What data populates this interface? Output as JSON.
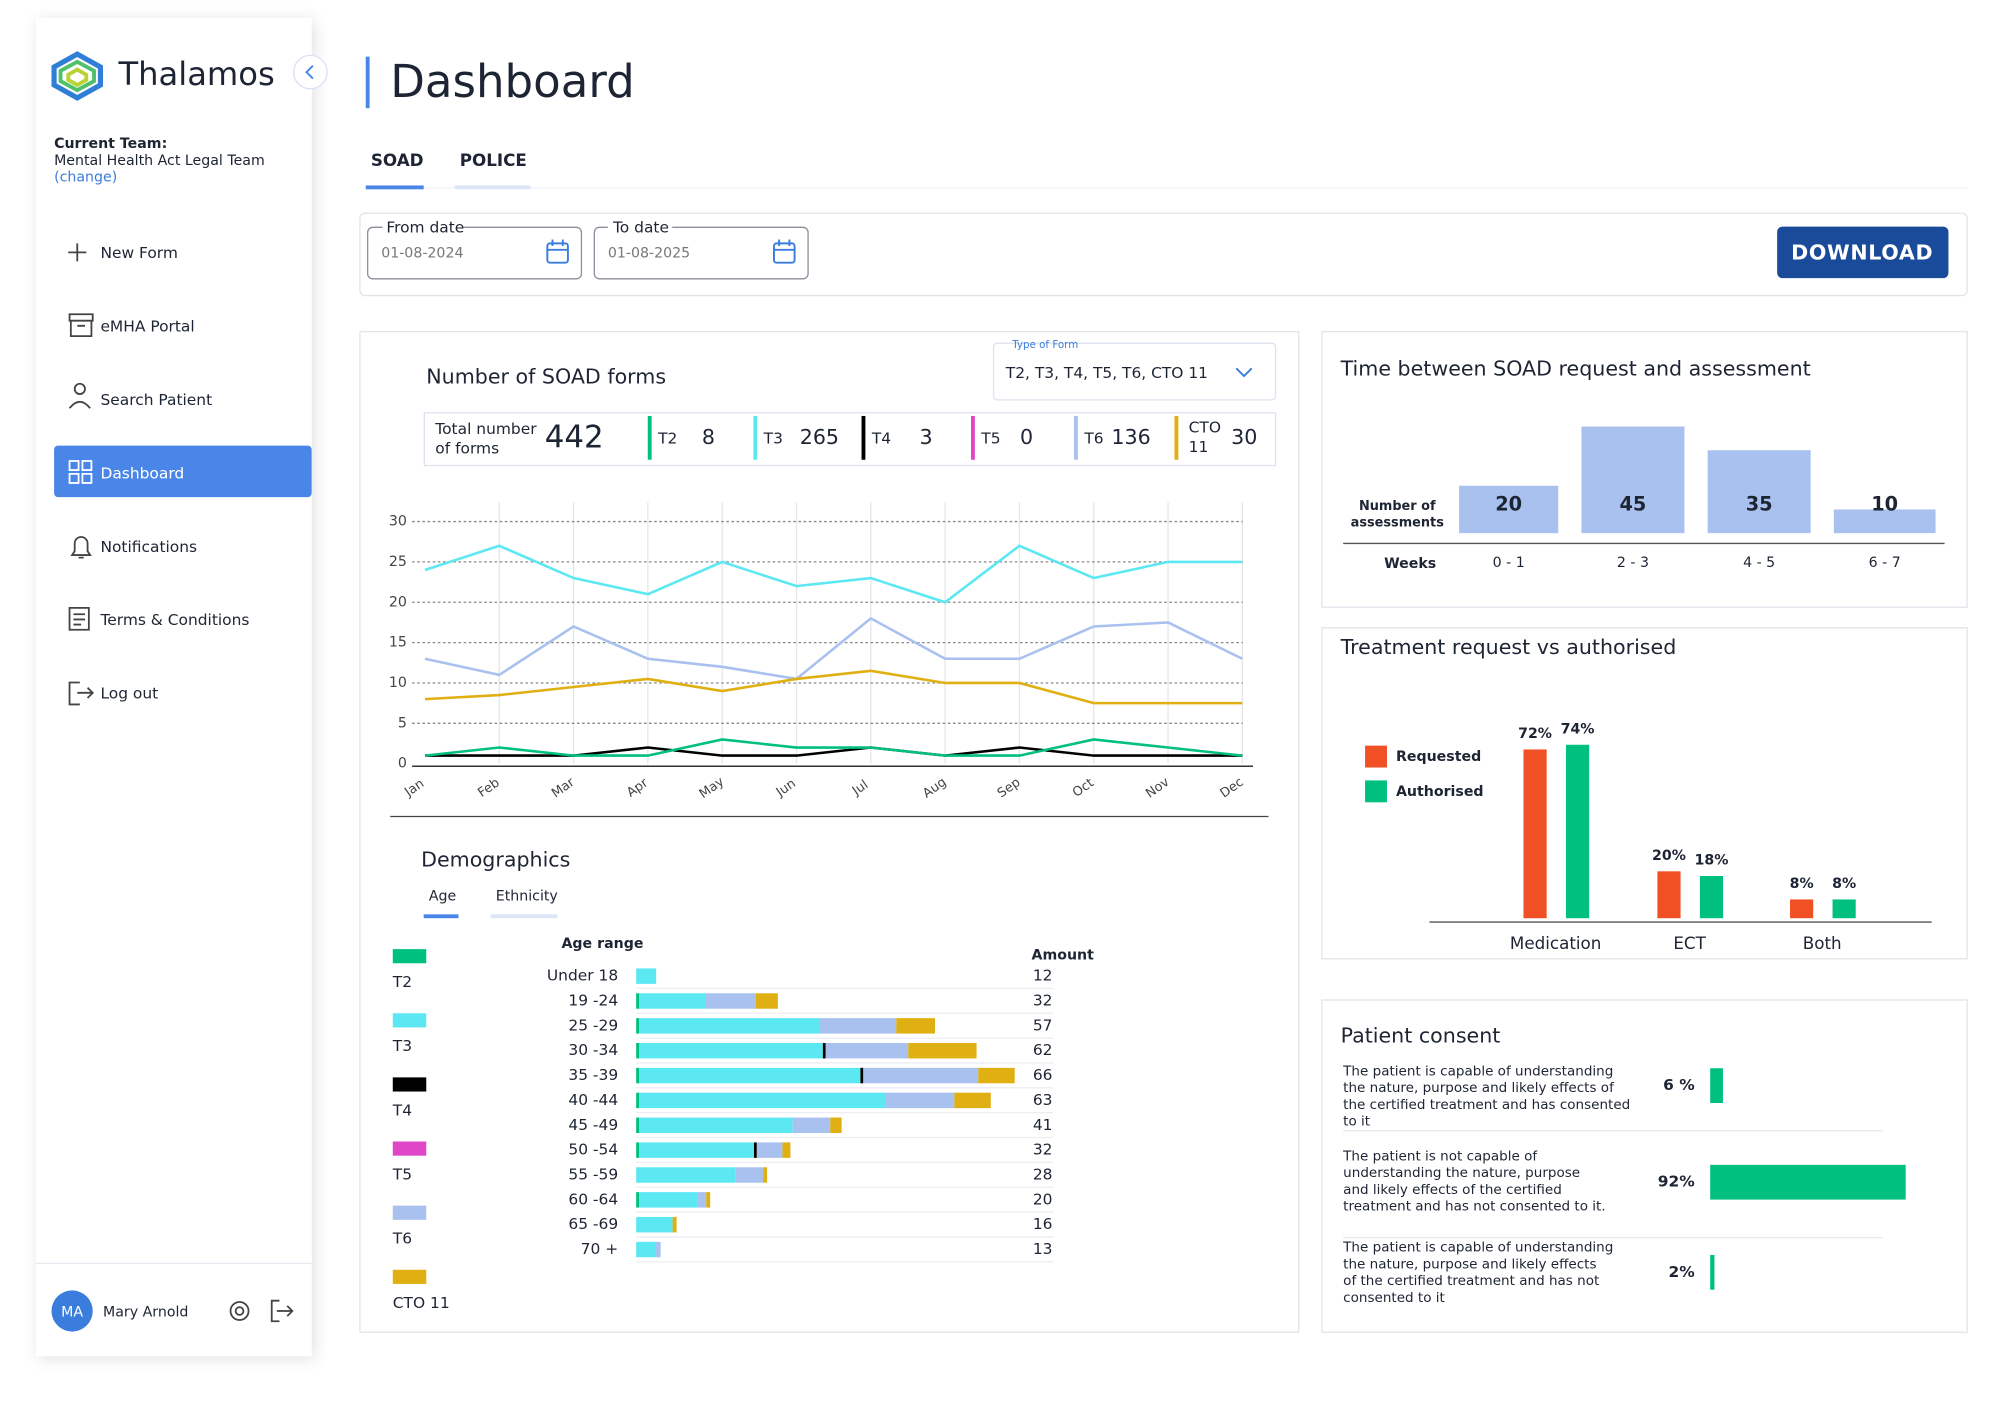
{
  "sidebar": {
    "brand": "Thalamos",
    "team_label": "Current Team:",
    "team": "Mental Health Act Legal Team",
    "change": "(change)",
    "nav": [
      "New Form",
      "eMHA Portal",
      "Search Patient",
      "Dashboard",
      "Notifications",
      "Terms & Conditions",
      "Log out"
    ],
    "user": {
      "initials": "MA",
      "name": "Mary Arnold"
    }
  },
  "header": {
    "title": "Dashboard",
    "tabs": [
      "SOAD",
      "POLICE"
    ]
  },
  "filters": {
    "from_label": "From date",
    "from": "01-08-2024",
    "to_label": "To date",
    "to": "01-08-2025",
    "download": "DOWNLOAD"
  },
  "soad": {
    "title": "Number of SOAD forms",
    "type_label": "Type of Form",
    "type_value": "T2, T3, T4, T5, T6, CTO 11",
    "total_label": "Total number of forms",
    "total": 442,
    "counts": [
      {
        "name": "T2",
        "value": 8,
        "color": "#00c07f"
      },
      {
        "name": "T3",
        "value": 265,
        "color": "#5ce8f2"
      },
      {
        "name": "T4",
        "value": 3,
        "color": "#000000"
      },
      {
        "name": "T5",
        "value": 0,
        "color": "#e046c8"
      },
      {
        "name": "T6",
        "value": 136,
        "color": "#a9c1ee"
      },
      {
        "name": "CTO 11",
        "value": 30,
        "color": "#e0b012"
      }
    ],
    "chart": {
      "type": "line",
      "categories": [
        "Jan",
        "Feb",
        "Mar",
        "Apr",
        "May",
        "Jun",
        "Jul",
        "Aug",
        "Sep",
        "Oct",
        "Nov",
        "Dec"
      ],
      "ylim": [
        0,
        30
      ],
      "yticks": [
        0,
        5,
        10,
        15,
        20,
        25,
        30
      ],
      "grid": true,
      "series": [
        {
          "color": "#5ce8f2",
          "values": [
            24,
            27,
            23,
            21,
            25,
            22,
            23,
            20,
            27,
            23,
            25,
            25
          ]
        },
        {
          "color": "#a9c1ee",
          "values": [
            13,
            11,
            17,
            13,
            12,
            10.5,
            18,
            13,
            13,
            17,
            17.5,
            13
          ]
        },
        {
          "color": "#e0b012",
          "values": [
            8,
            8.5,
            9.5,
            10.5,
            9,
            10.5,
            11.5,
            10,
            10,
            7.5,
            7.5,
            7.5
          ]
        },
        {
          "color": "#000000",
          "values": [
            1,
            1,
            1,
            2,
            1,
            1,
            2,
            1,
            2,
            1,
            1,
            1
          ]
        },
        {
          "color": "#00c07f",
          "values": [
            1,
            2,
            1,
            1,
            3,
            2,
            2,
            1,
            1,
            3,
            2,
            1
          ]
        }
      ]
    }
  },
  "demographics": {
    "title": "Demographics",
    "tabs": [
      "Age",
      "Ethnicity"
    ],
    "legend": [
      {
        "name": "T2",
        "color": "#00c07f"
      },
      {
        "name": "T3",
        "color": "#5ce8f2"
      },
      {
        "name": "T4",
        "color": "#000000"
      },
      {
        "name": "T5",
        "color": "#e046c8"
      },
      {
        "name": "T6",
        "color": "#a9c1ee"
      },
      {
        "name": "CTO 11",
        "color": "#e0b012"
      }
    ],
    "range_label": "Age range",
    "amount_label": "Amount",
    "rows": [
      {
        "label": "Under 18",
        "amount": 12,
        "segments": [
          0,
          3.5,
          0,
          0,
          0,
          0
        ]
      },
      {
        "label": "19 -24",
        "amount": 32,
        "segments": [
          0.5,
          11.6,
          0,
          0,
          8.9,
          3.9
        ]
      },
      {
        "label": "25 -29",
        "amount": 57,
        "segments": [
          0.5,
          31.8,
          0,
          0,
          13.4,
          6.8
        ]
      },
      {
        "label": "30 -34",
        "amount": 62,
        "segments": [
          0.5,
          32.3,
          0.5,
          0,
          14.5,
          12
        ]
      },
      {
        "label": "35 -39",
        "amount": 66,
        "segments": [
          0.5,
          38.9,
          0.5,
          0,
          20.2,
          6.4
        ]
      },
      {
        "label": "40 -44",
        "amount": 63,
        "segments": [
          0.5,
          43.4,
          0,
          0,
          12,
          6.4
        ]
      },
      {
        "label": "45 -49",
        "amount": 41,
        "segments": [
          0.5,
          27,
          0,
          0,
          6.6,
          2
        ]
      },
      {
        "label": "50 -54",
        "amount": 32,
        "segments": [
          0.5,
          20.2,
          0.5,
          0,
          4.5,
          1.4
        ]
      },
      {
        "label": "55 -59",
        "amount": 28,
        "segments": [
          0,
          17.5,
          0,
          0,
          4.8,
          0.7
        ]
      },
      {
        "label": "60 -64",
        "amount": 20,
        "segments": [
          0.5,
          10.2,
          0,
          0,
          1.6,
          0.7
        ]
      },
      {
        "label": "65 -69",
        "amount": 16,
        "segments": [
          0,
          6.4,
          0,
          0,
          0,
          0.7
        ]
      },
      {
        "label": "70 +",
        "amount": 13,
        "segments": [
          0,
          3.4,
          0,
          0,
          0.9,
          0
        ]
      }
    ]
  },
  "time": {
    "type": "bar",
    "title": "Time between SOAD request and assessment",
    "y_label": "Number of assessments",
    "x_label": "Weeks",
    "categories": [
      "0 - 1",
      "2 - 3",
      "4 - 5",
      "6 - 7"
    ],
    "values": [
      20,
      45,
      35,
      10
    ],
    "color": "#a9c1ee"
  },
  "treatment": {
    "type": "bar",
    "title": "Treatment request vs authorised",
    "categories": [
      "Medication",
      "ECT",
      "Both"
    ],
    "series": [
      {
        "name": "Requested",
        "color": "#f05023",
        "values": [
          72,
          20,
          8
        ],
        "value_labels": [
          "72%",
          "20%",
          "8%"
        ]
      },
      {
        "name": "Authorised",
        "color": "#00c07f",
        "values": [
          74,
          18,
          8
        ],
        "value_labels": [
          "74%",
          "18%",
          "8%"
        ]
      }
    ]
  },
  "consent": {
    "title": "Patient consent",
    "color": "#00c07f",
    "items": [
      {
        "text": "The patient is capable of understanding the nature, purpose and likely effects of the certified treatment and has consented to it",
        "value": 6,
        "value_label": "6 %"
      },
      {
        "text": "The patient is not capable of understanding the nature, purpose and likely effects of the certified treatment and has not consented to it.",
        "value": 92,
        "value_label": "92%"
      },
      {
        "text": "The patient is capable of understanding the nature, purpose and likely effects of the certified treatment and has not consented to it",
        "value": 2,
        "value_label": "2%"
      }
    ]
  }
}
